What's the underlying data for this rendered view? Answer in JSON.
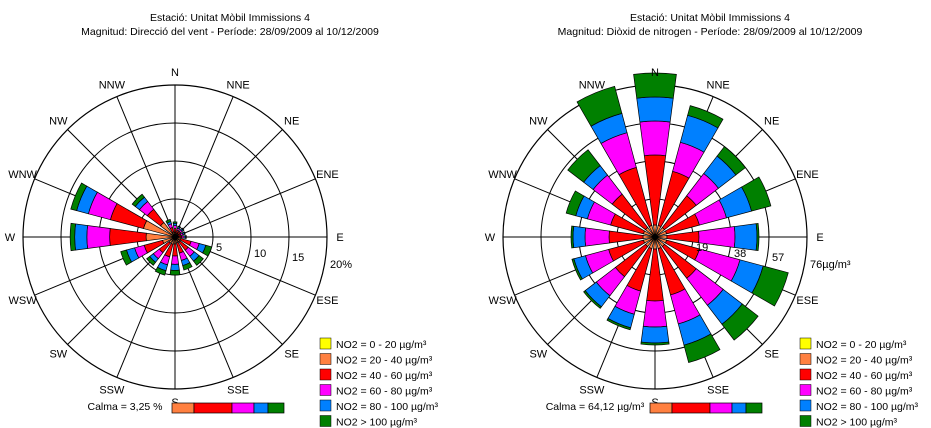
{
  "chart_data": [
    {
      "type": "polar-stacked-bar",
      "title": "Estació: Unitat Mòbil Immissions 4",
      "subtitle": "Magnitud: Direcció del vent - Període: 28/09/2009 al 10/12/2009",
      "directions": [
        "N",
        "NNE",
        "NE",
        "ENE",
        "E",
        "ESE",
        "SE",
        "SSE",
        "S",
        "SSW",
        "SW",
        "WSW",
        "W",
        "WNW",
        "NW",
        "NNW"
      ],
      "ring_values": [
        5,
        10,
        15,
        20
      ],
      "ring_labels": [
        "5",
        "10",
        "15",
        "20%"
      ],
      "unit": "%",
      "calm_text": "Calma = 3,25 %",
      "series": [
        {
          "name": "NO2 = 0 - 20 µg/m³",
          "values": [
            0.1,
            0.1,
            0.1,
            0.1,
            0.1,
            0.2,
            0.2,
            0.2,
            0.2,
            0.2,
            0.2,
            0.2,
            0.3,
            0.3,
            0.2,
            0.1
          ]
        },
        {
          "name": "NO2 = 20 - 40 µg/m³",
          "values": [
            0.5,
            0.4,
            0.4,
            0.3,
            0.4,
            0.6,
            0.6,
            0.6,
            0.7,
            0.8,
            0.8,
            1.5,
            3.5,
            4.0,
            2.2,
            0.6
          ]
        },
        {
          "name": "NO2 = 40 - 60 µg/m³",
          "values": [
            0.5,
            0.4,
            0.4,
            0.4,
            0.4,
            1.4,
            1.4,
            1.4,
            1.6,
            1.7,
            1.6,
            2.5,
            4.8,
            4.5,
            2.2,
            0.6
          ]
        },
        {
          "name": "NO2 = 60 - 80 µg/m³",
          "values": [
            0.4,
            0.3,
            0.3,
            0.3,
            0.3,
            1.1,
            1.0,
            1.0,
            1.1,
            1.1,
            1.0,
            1.3,
            3.0,
            3.0,
            1.3,
            0.5
          ]
        },
        {
          "name": "NO2 = 80 - 100 µg/m³",
          "values": [
            0.3,
            0.2,
            0.2,
            0.2,
            0.2,
            0.9,
            0.8,
            0.7,
            0.8,
            0.8,
            0.6,
            1.1,
            1.6,
            1.6,
            0.7,
            0.3
          ]
        },
        {
          "name": "NO2 > 100 µg/m³",
          "values": [
            0.2,
            0.1,
            0.1,
            0.1,
            0.1,
            0.8,
            0.7,
            0.6,
            0.6,
            0.6,
            0.5,
            0.8,
            0.6,
            0.8,
            0.5,
            0.3
          ]
        }
      ]
    },
    {
      "type": "polar-stacked-bar",
      "title": "Estació: Unitat Mòbil Immissions 4",
      "subtitle": "Magnitud: Diòxid de nitrogen - Període: 28/09/2009 al 10/12/2009",
      "directions": [
        "N",
        "NNE",
        "NE",
        "ENE",
        "E",
        "ESE",
        "SE",
        "SSE",
        "S",
        "SSW",
        "SW",
        "WSW",
        "W",
        "WNW",
        "NW",
        "NNW"
      ],
      "ring_values": [
        19,
        38,
        57,
        76
      ],
      "ring_labels": [
        "19",
        "38",
        "57",
        "76µg/m³"
      ],
      "unit": "µg/m³",
      "calm_text": "Calma = 64,12 µg/m³",
      "series": [
        {
          "name": "NO2 = 0 - 20 µg/m³",
          "values": [
            1,
            1,
            1,
            1,
            1,
            1,
            1,
            1,
            1,
            1,
            1,
            1,
            1,
            1,
            1,
            1
          ]
        },
        {
          "name": "NO2 = 20 - 40 µg/m³",
          "values": [
            5,
            5,
            5,
            5,
            5,
            5,
            5,
            5,
            5,
            5,
            5,
            5,
            5,
            5,
            5,
            5
          ]
        },
        {
          "name": "NO2 = 40 - 60 µg/m³",
          "values": [
            35,
            28,
            20,
            17,
            16,
            17,
            20,
            24,
            26,
            22,
            19,
            18,
            17,
            17,
            21,
            30
          ]
        },
        {
          "name": "NO2 = 60 - 80 µg/m³",
          "values": [
            17,
            15,
            14,
            14,
            18,
            21,
            17,
            15,
            13,
            12,
            12,
            12,
            12,
            12,
            12,
            18
          ]
        },
        {
          "name": "NO2 = 80 - 100 µg/m³",
          "values": [
            12,
            14,
            11,
            13,
            11,
            12,
            12,
            11,
            8,
            7,
            7,
            6,
            6,
            6,
            6,
            10
          ]
        },
        {
          "name": "NO2 > 100 µg/m³",
          "values": [
            12,
            5,
            6,
            10,
            1,
            13,
            10,
            9,
            1,
            1,
            1,
            1,
            1,
            5,
            10,
            14
          ]
        }
      ]
    }
  ],
  "colors": [
    "#ffff00",
    "#ff8040",
    "#ff0000",
    "#ff00ff",
    "#0080ff",
    "#008000"
  ]
}
